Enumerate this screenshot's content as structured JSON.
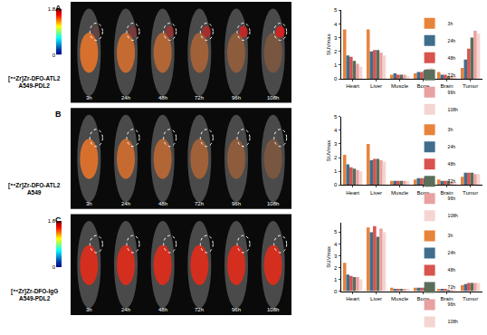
{
  "chart_data": [
    {
      "type": "bar",
      "panel": "A",
      "label": [
        "[⁸⁹Zr]Zr-DFO-ATL2",
        "A549-PDL2"
      ],
      "image_times": [
        "3h",
        "24h",
        "48h",
        "72h",
        "96h",
        "108h"
      ],
      "colorbar": {
        "range": [
          0,
          1.8
        ],
        "ticks": [
          0,
          1.8
        ]
      },
      "y_label": "SUVmax",
      "categories": [
        "Heart",
        "Liver",
        "Muscle",
        "Bone",
        "Brain",
        "Tumor"
      ],
      "series": [
        {
          "name": "3h",
          "color": "#e8833a",
          "values": [
            3.6,
            3.6,
            0.3,
            0.4,
            0.5,
            0.8
          ]
        },
        {
          "name": "24h",
          "color": "#3f6e8c",
          "values": [
            1.7,
            2.0,
            0.4,
            0.5,
            0.3,
            1.4
          ]
        },
        {
          "name": "48h",
          "color": "#d9534f",
          "values": [
            1.6,
            2.1,
            0.3,
            0.5,
            0.3,
            2.2
          ]
        },
        {
          "name": "72h",
          "color": "#5a6e5a",
          "values": [
            1.3,
            2.1,
            0.3,
            0.6,
            0.2,
            3.0
          ]
        },
        {
          "name": "96h",
          "color": "#e8a0a0",
          "values": [
            1.1,
            1.9,
            0.3,
            0.7,
            0.2,
            3.5
          ]
        },
        {
          "name": "108h",
          "color": "#f5d5d0",
          "values": [
            0.9,
            1.7,
            0.2,
            0.8,
            0.2,
            3.3
          ]
        }
      ],
      "ylim": [
        0,
        5
      ],
      "yticks": [
        0,
        1,
        2,
        3,
        4,
        5
      ],
      "grid": false,
      "legend": "upper right"
    },
    {
      "type": "bar",
      "panel": "B",
      "label": [
        "[⁸⁹Zr]Zr-DFO-ATL2",
        "A549"
      ],
      "image_times": [
        "3h",
        "24h",
        "48h",
        "72h",
        "96h",
        "108h"
      ],
      "y_label": "SUVmax",
      "categories": [
        "Heart",
        "Liver",
        "Muscle",
        "Bone",
        "Brain",
        "Tumor"
      ],
      "series": [
        {
          "name": "3h",
          "color": "#e8833a",
          "values": [
            2.2,
            3.0,
            0.3,
            0.4,
            0.4,
            0.6
          ]
        },
        {
          "name": "24h",
          "color": "#3f6e8c",
          "values": [
            1.5,
            1.8,
            0.3,
            0.5,
            0.3,
            0.9
          ]
        },
        {
          "name": "48h",
          "color": "#d9534f",
          "values": [
            1.3,
            1.9,
            0.3,
            0.5,
            0.3,
            0.9
          ]
        },
        {
          "name": "72h",
          "color": "#5a6e5a",
          "values": [
            1.2,
            1.9,
            0.3,
            0.5,
            0.3,
            0.9
          ]
        },
        {
          "name": "96h",
          "color": "#e8a0a0",
          "values": [
            1.1,
            1.8,
            0.3,
            0.5,
            0.2,
            0.8
          ]
        },
        {
          "name": "108h",
          "color": "#f5d5d0",
          "values": [
            1.0,
            1.7,
            0.3,
            0.5,
            0.2,
            0.8
          ]
        }
      ],
      "ylim": [
        0,
        5
      ],
      "yticks": [
        0,
        1,
        2,
        3,
        4,
        5
      ],
      "grid": false,
      "legend": "upper right"
    },
    {
      "type": "bar",
      "panel": "C",
      "label": [
        "[⁸⁹Zr]Zr-DFO-IgG",
        "A549-PDL2"
      ],
      "image_times": [
        "3h",
        "24h",
        "48h",
        "72h",
        "96h",
        "108h"
      ],
      "colorbar": {
        "range": [
          0,
          1.8
        ],
        "ticks": [
          0,
          1.8
        ]
      },
      "y_label": "SUVmax",
      "categories": [
        "Heart",
        "Liver",
        "Muscle",
        "Bone",
        "Brain",
        "Tumor"
      ],
      "series": [
        {
          "name": "3h",
          "color": "#e8833a",
          "values": [
            2.4,
            5.4,
            0.3,
            0.3,
            0.2,
            0.5
          ]
        },
        {
          "name": "24h",
          "color": "#3f6e8c",
          "values": [
            1.4,
            5.0,
            0.2,
            0.3,
            0.2,
            0.6
          ]
        },
        {
          "name": "48h",
          "color": "#d9534f",
          "values": [
            1.3,
            5.5,
            0.2,
            0.3,
            0.2,
            0.7
          ]
        },
        {
          "name": "72h",
          "color": "#5a6e5a",
          "values": [
            1.2,
            4.6,
            0.2,
            0.3,
            0.1,
            0.7
          ]
        },
        {
          "name": "96h",
          "color": "#e8a0a0",
          "values": [
            1.2,
            5.3,
            0.2,
            0.3,
            0.1,
            0.7
          ]
        },
        {
          "name": "108h",
          "color": "#f5d5d0",
          "values": [
            1.0,
            5.0,
            0.2,
            0.3,
            0.1,
            0.7
          ]
        }
      ],
      "ylim": [
        0,
        5.8
      ],
      "yticks": [
        0,
        1,
        2,
        3,
        4,
        5
      ],
      "grid": false,
      "legend": "upper right"
    }
  ]
}
